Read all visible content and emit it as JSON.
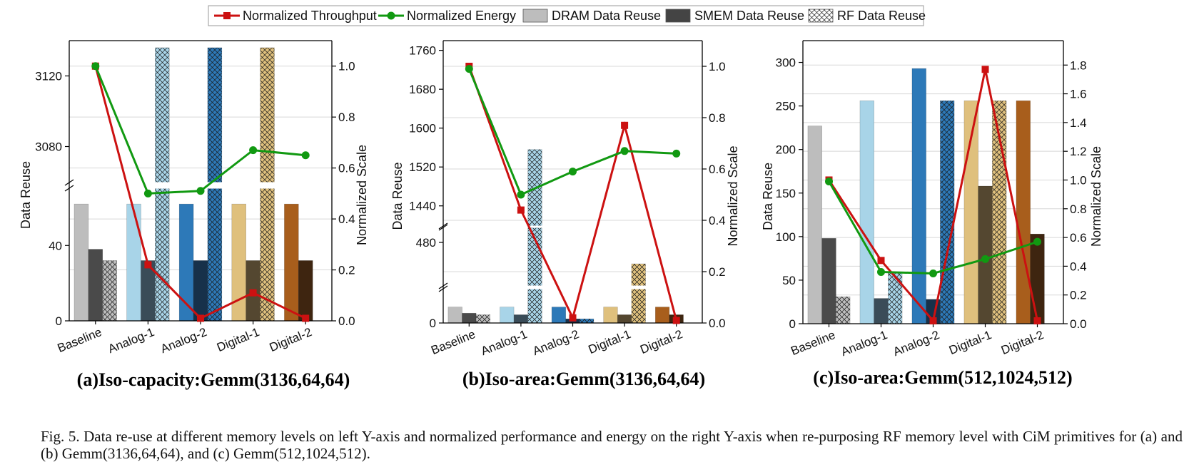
{
  "legend": [
    {
      "label": "Normalized Throughput",
      "kind": "line",
      "color": "#cc1111",
      "marker": "square"
    },
    {
      "label": "Normalized Energy",
      "kind": "line",
      "color": "#119911",
      "marker": "circle"
    },
    {
      "label": "DRAM Data Reuse",
      "kind": "bar",
      "color": "#bdbdbd",
      "pattern": "solid"
    },
    {
      "label": "SMEM Data Reuse",
      "kind": "bar",
      "color": "#444444",
      "pattern": "solid"
    },
    {
      "label": "RF Data Reuse",
      "kind": "bar",
      "color": "#ffffff",
      "pattern": "crosshatch"
    }
  ],
  "palette": {
    "Baseline": [
      "#bdbdbd",
      "#4a4a4a",
      "#bdbdbd"
    ],
    "Analog-1": [
      "#a8d4e8",
      "#3a4c58",
      "#a8d4e8"
    ],
    "Analog-2": [
      "#2d79b8",
      "#17314a",
      "#2d79b8"
    ],
    "Digital-1": [
      "#dfc07d",
      "#544730",
      "#dfc07d"
    ],
    "Digital-2": [
      "#a85e1c",
      "#3e2510",
      "#a85e1c"
    ],
    "throughput": "#cc1111",
    "energy": "#119911"
  },
  "chart_data": [
    {
      "type": "bar",
      "title": "(a)Iso-capacity:Gemm(3136,64,64)",
      "categories": [
        "Baseline",
        "Analog-1",
        "Analog-2",
        "Digital-1",
        "Digital-2"
      ],
      "ylabel": "Data Reuse",
      "y2label": "Normalized Scale",
      "ylim_lower": [
        0,
        70
      ],
      "ylim_upper": [
        3060,
        3140
      ],
      "lower_ticks": [
        0,
        40
      ],
      "upper_ticks": [
        3080,
        3120
      ],
      "ylim_right": [
        0,
        1.1
      ],
      "right_ticks": [
        "0.0",
        "0.2",
        "0.4",
        "0.6",
        "0.8",
        "1.0"
      ],
      "series": [
        {
          "name": "DRAM Data Reuse",
          "values": [
            62,
            62,
            62,
            62,
            62
          ]
        },
        {
          "name": "SMEM Data Reuse",
          "values": [
            38,
            32,
            32,
            32,
            32
          ]
        },
        {
          "name": "RF Data Reuse",
          "values": [
            32,
            3136,
            3136,
            3136,
            null
          ]
        },
        {
          "name": "Normalized Throughput",
          "axis": "right",
          "values": [
            1.0,
            0.22,
            0.01,
            0.11,
            0.01
          ]
        },
        {
          "name": "Normalized Energy",
          "axis": "right",
          "values": [
            1.0,
            0.5,
            0.51,
            0.67,
            0.65
          ]
        }
      ]
    },
    {
      "type": "bar",
      "title": "(b)Iso-area:Gemm(3136,64,64)",
      "categories": [
        "Baseline",
        "Analog-1",
        "Analog-2",
        "Digital-1",
        "Digital-2"
      ],
      "ylabel": "Data Reuse",
      "y2label": "Normalized Scale",
      "ylim_lower": [
        0,
        130
      ],
      "ylim_mid": [
        420,
        500
      ],
      "ylim_upper": [
        1400,
        1780
      ],
      "lower_ticks": [
        0
      ],
      "mid_ticks": [
        480
      ],
      "upper_ticks": [
        1440,
        1520,
        1600,
        1680,
        1760
      ],
      "ylim_right": [
        0,
        1.1
      ],
      "right_ticks": [
        "0.0",
        "0.2",
        "0.4",
        "0.6",
        "0.8",
        "1.0"
      ],
      "series": [
        {
          "name": "DRAM Data Reuse",
          "values": [
            62,
            62,
            62,
            62,
            62
          ]
        },
        {
          "name": "SMEM Data Reuse",
          "values": [
            38,
            32,
            16,
            32,
            32
          ]
        },
        {
          "name": "RF Data Reuse",
          "values": [
            32,
            1556,
            16,
            450,
            null
          ]
        },
        {
          "name": "Normalized Throughput",
          "axis": "right",
          "values": [
            1.0,
            0.44,
            0.02,
            0.77,
            0.01
          ]
        },
        {
          "name": "Normalized Energy",
          "axis": "right",
          "values": [
            0.99,
            0.5,
            0.59,
            0.67,
            0.66
          ]
        }
      ]
    },
    {
      "type": "bar",
      "title": "(c)Iso-area:Gemm(512,1024,512)",
      "categories": [
        "Baseline",
        "Analog-1",
        "Analog-2",
        "Digital-1",
        "Digital-2"
      ],
      "ylabel": "Data Reuse",
      "y2label": "Normalized Scale",
      "ylim": [
        0,
        325
      ],
      "left_ticks": [
        0,
        50,
        100,
        150,
        200,
        250,
        300
      ],
      "ylim_right": [
        0,
        1.97
      ],
      "right_ticks": [
        "0.0",
        "0.2",
        "0.4",
        "0.6",
        "0.8",
        "1.0",
        "1.2",
        "1.4",
        "1.6",
        "1.8"
      ],
      "series": [
        {
          "name": "DRAM Data Reuse",
          "values": [
            227,
            256,
            293,
            256,
            256
          ]
        },
        {
          "name": "SMEM Data Reuse",
          "values": [
            98,
            29,
            28,
            158,
            103
          ]
        },
        {
          "name": "RF Data Reuse",
          "values": [
            31,
            59,
            256,
            256,
            null
          ]
        },
        {
          "name": "Normalized Throughput",
          "axis": "right",
          "values": [
            1.0,
            0.44,
            0.02,
            1.77,
            0.02
          ]
        },
        {
          "name": "Normalized Energy",
          "axis": "right",
          "values": [
            0.99,
            0.36,
            0.35,
            0.45,
            0.57
          ]
        }
      ]
    }
  ],
  "caption": "Fig. 5.  Data re-use at different memory levels on left Y-axis and normalized performance and energy on the right Y-axis when re-purposing RF memory level with CiM primitives for (a) and (b) Gemm(3136,64,64), and (c) Gemm(512,1024,512)."
}
